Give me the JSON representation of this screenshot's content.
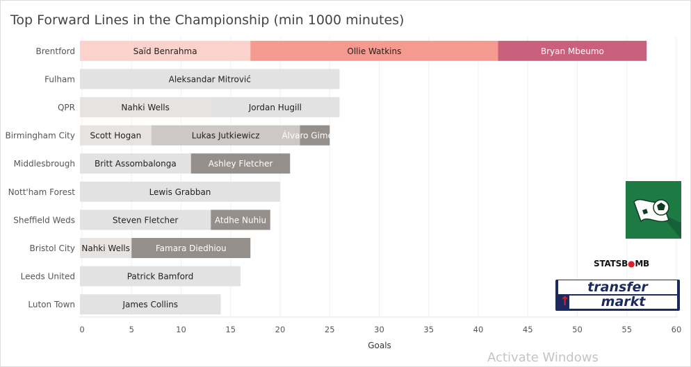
{
  "chart_data": {
    "type": "bar",
    "stacked": true,
    "orientation": "horizontal",
    "title": "Top Forward Lines in the Championship (min 1000 minutes)",
    "xlabel": "Goals",
    "ylabel": "",
    "xlim": [
      0,
      60
    ],
    "x_ticks": [
      "0",
      "5",
      "10",
      "15",
      "20",
      "25",
      "30",
      "35",
      "40",
      "45",
      "50",
      "55",
      "60"
    ],
    "grid": true,
    "teams": [
      {
        "name": "Brentford",
        "segments": [
          {
            "player": "Saïd Benrahma",
            "goals": 17,
            "color": "#fbd3cc"
          },
          {
            "player": "Ollie Watkins",
            "goals": 25,
            "color": "#f49a8f"
          },
          {
            "player": "Bryan Mbeumo",
            "goals": 15,
            "color": "#c9607c"
          }
        ]
      },
      {
        "name": "Fulham",
        "segments": [
          {
            "player": "Aleksandar Mitrović",
            "goals": 26,
            "color": "#e2e2e2"
          }
        ]
      },
      {
        "name": "QPR",
        "segments": [
          {
            "player": "Nahki Wells",
            "goals": 13,
            "color": "#e7e3e0"
          },
          {
            "player": "Jordan Hugill",
            "goals": 13,
            "color": "#e2e2e2"
          }
        ]
      },
      {
        "name": "Birmingham City",
        "segments": [
          {
            "player": "Scott Hogan",
            "goals": 7,
            "color": "#e7e3e0"
          },
          {
            "player": "Lukas Jutkiewicz",
            "goals": 15,
            "color": "#cdc8c5"
          },
          {
            "player": "Álvaro Giménez",
            "goals": 3,
            "color": "#958f8c"
          }
        ]
      },
      {
        "name": "Middlesbrough",
        "segments": [
          {
            "player": "Britt Assombalonga",
            "goals": 11,
            "color": "#e2e2e2"
          },
          {
            "player": "Ashley Fletcher",
            "goals": 10,
            "color": "#958f8c"
          }
        ]
      },
      {
        "name": "Nott'ham Forest",
        "segments": [
          {
            "player": "Lewis Grabban",
            "goals": 20,
            "color": "#e2e2e2"
          }
        ]
      },
      {
        "name": "Sheffield Weds",
        "segments": [
          {
            "player": "Steven Fletcher",
            "goals": 13,
            "color": "#e2e2e2"
          },
          {
            "player": "Atdhe Nuhiu",
            "goals": 6,
            "color": "#958f8c"
          }
        ]
      },
      {
        "name": "Bristol City",
        "segments": [
          {
            "player": "Nahki Wells",
            "goals": 5,
            "color": "#e7e3e0"
          },
          {
            "player": "Famara Diedhiou",
            "goals": 12,
            "color": "#958f8c"
          }
        ]
      },
      {
        "name": "Leeds United",
        "segments": [
          {
            "player": "Patrick Bamford",
            "goals": 16,
            "color": "#e2e2e2"
          }
        ]
      },
      {
        "name": "Luton Town",
        "segments": [
          {
            "player": "James Collins",
            "goals": 14,
            "color": "#e2e2e2"
          }
        ]
      }
    ]
  },
  "logos": {
    "statsbomb": "STATSBOMB",
    "transfermarkt_line1": "transfer",
    "transfermarkt_line2": "markt",
    "football_icon": "soccer-ball-flag-icon"
  },
  "watermark": "Activate Windows"
}
